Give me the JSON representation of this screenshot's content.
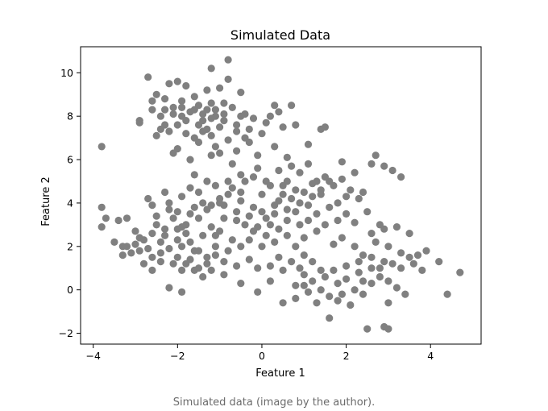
{
  "caption": "Simulated data (image by the author).",
  "chart_data": {
    "type": "scatter",
    "title": "Simulated Data",
    "xlabel": "Feature 1",
    "ylabel": "Feature 2",
    "xlim": [
      -4.3,
      5.2
    ],
    "ylim": [
      -2.5,
      11.2
    ],
    "xticks": [
      -4,
      -2,
      0,
      2,
      4
    ],
    "yticks": [
      -2,
      0,
      2,
      4,
      6,
      8,
      10
    ],
    "grid": false,
    "legend": "none",
    "marker_color": "#808080",
    "series": [
      {
        "points": [
          [
            -2.7,
            9.8
          ],
          [
            -0.8,
            10.6
          ],
          [
            -1.2,
            10.2
          ],
          [
            -2.2,
            9.5
          ],
          [
            -2.0,
            9.6
          ],
          [
            -1.8,
            9.4
          ],
          [
            -1.0,
            9.3
          ],
          [
            -0.5,
            9.1
          ],
          [
            -2.5,
            9.0
          ],
          [
            -1.3,
            9.2
          ],
          [
            -2.3,
            8.8
          ],
          [
            -1.6,
            8.9
          ],
          [
            -0.9,
            8.6
          ],
          [
            -2.6,
            8.7
          ],
          [
            -1.9,
            8.4
          ],
          [
            -1.1,
            8.3
          ],
          [
            -0.7,
            8.4
          ],
          [
            -1.5,
            8.5
          ],
          [
            -2.1,
            8.1
          ],
          [
            -2.4,
            8.0
          ],
          [
            -1.7,
            8.2
          ],
          [
            -1.2,
            7.9
          ],
          [
            -0.4,
            8.1
          ],
          [
            0.2,
            8.0
          ],
          [
            0.4,
            8.2
          ],
          [
            0.1,
            7.7
          ],
          [
            -2.9,
            7.8
          ],
          [
            -2.0,
            7.6
          ],
          [
            -1.4,
            7.8
          ],
          [
            -1.0,
            7.5
          ],
          [
            -0.6,
            7.6
          ],
          [
            -2.2,
            7.3
          ],
          [
            -1.8,
            7.2
          ],
          [
            -1.3,
            7.4
          ],
          [
            -0.3,
            7.4
          ],
          [
            0.0,
            7.2
          ],
          [
            -2.5,
            7.1
          ],
          [
            -1.6,
            7.0
          ],
          [
            -0.8,
            6.9
          ],
          [
            -0.3,
            6.8
          ],
          [
            -2.0,
            6.5
          ],
          [
            -1.5,
            6.8
          ],
          [
            -1.1,
            6.6
          ],
          [
            -0.6,
            6.4
          ],
          [
            -1.7,
            6.0
          ],
          [
            -1.2,
            6.2
          ],
          [
            -0.1,
            6.2
          ],
          [
            -0.7,
            5.8
          ],
          [
            -3.8,
            6.6
          ],
          [
            -2.9,
            7.7
          ],
          [
            -2.3,
            8.3
          ],
          [
            -1.9,
            8.0
          ],
          [
            -1.2,
            8.6
          ],
          [
            0.5,
            7.5
          ],
          [
            0.8,
            7.6
          ],
          [
            1.4,
            7.4
          ],
          [
            -0.9,
            7.8
          ],
          [
            -2.6,
            8.3
          ],
          [
            -1.5,
            7.6
          ],
          [
            -1.0,
            6.3
          ],
          [
            -2.1,
            6.3
          ],
          [
            -0.4,
            7.0
          ],
          [
            0.7,
            8.5
          ],
          [
            0.3,
            8.5
          ],
          [
            -0.5,
            8.0
          ],
          [
            -2.4,
            7.4
          ],
          [
            -0.2,
            7.9
          ],
          [
            -1.2,
            7.1
          ],
          [
            -1.4,
            8.1
          ],
          [
            -0.8,
            9.7
          ],
          [
            -3.8,
            3.8
          ],
          [
            -3.8,
            2.9
          ],
          [
            -3.7,
            3.3
          ],
          [
            -3.4,
            3.2
          ],
          [
            -3.2,
            3.3
          ],
          [
            -3.5,
            2.2
          ],
          [
            -3.3,
            2.0
          ],
          [
            -3.0,
            2.1
          ],
          [
            -2.8,
            2.3
          ],
          [
            -2.6,
            2.6
          ],
          [
            -3.1,
            1.7
          ],
          [
            -2.9,
            1.8
          ],
          [
            -2.6,
            1.5
          ],
          [
            -2.4,
            1.7
          ],
          [
            -3.3,
            1.6
          ],
          [
            -2.8,
            1.2
          ],
          [
            -2.6,
            0.9
          ],
          [
            -2.1,
            1.2
          ],
          [
            -1.7,
            1.4
          ],
          [
            -1.5,
            1.0
          ],
          [
            -1.3,
            1.2
          ],
          [
            -1.1,
            1.6
          ],
          [
            -0.9,
            1.3
          ],
          [
            -1.6,
            1.8
          ],
          [
            -1.9,
            2.0
          ],
          [
            -2.0,
            2.3
          ],
          [
            -1.8,
            2.6
          ],
          [
            -1.4,
            2.5
          ],
          [
            -1.0,
            2.7
          ],
          [
            -0.7,
            2.3
          ],
          [
            -2.3,
            2.8
          ],
          [
            -2.1,
            3.3
          ],
          [
            -1.7,
            3.5
          ],
          [
            -1.3,
            3.7
          ],
          [
            -0.9,
            3.9
          ],
          [
            -0.6,
            3.6
          ],
          [
            -2.6,
            3.9
          ],
          [
            -2.2,
            4.0
          ],
          [
            -1.9,
            4.3
          ],
          [
            -1.5,
            4.5
          ],
          [
            -1.1,
            4.8
          ],
          [
            -0.8,
            4.4
          ],
          [
            -2.7,
            4.2
          ],
          [
            -2.3,
            4.5
          ],
          [
            -1.6,
            5.3
          ],
          [
            -1.3,
            5.0
          ],
          [
            -0.5,
            4.1
          ],
          [
            -0.3,
            3.4
          ],
          [
            -0.1,
            2.9
          ],
          [
            0.1,
            3.3
          ],
          [
            0.3,
            3.9
          ],
          [
            0.5,
            4.4
          ],
          [
            0.2,
            4.8
          ],
          [
            -0.2,
            5.2
          ],
          [
            0.4,
            5.5
          ],
          [
            0.6,
            5.0
          ],
          [
            0.8,
            4.6
          ],
          [
            0.7,
            4.2
          ],
          [
            1.0,
            4.5
          ],
          [
            1.2,
            4.9
          ],
          [
            0.9,
            5.4
          ],
          [
            1.1,
            5.8
          ],
          [
            1.5,
            5.2
          ],
          [
            1.7,
            4.8
          ],
          [
            1.9,
            5.1
          ],
          [
            2.1,
            4.6
          ],
          [
            2.3,
            4.2
          ],
          [
            1.8,
            4.0
          ],
          [
            1.4,
            4.4
          ],
          [
            1.6,
            3.8
          ],
          [
            1.3,
            3.5
          ],
          [
            1.1,
            3.2
          ],
          [
            0.9,
            3.0
          ],
          [
            0.6,
            3.2
          ],
          [
            0.4,
            2.8
          ],
          [
            0.1,
            2.5
          ],
          [
            -0.2,
            2.7
          ],
          [
            0.3,
            2.2
          ],
          [
            0.6,
            2.5
          ],
          [
            0.8,
            2.0
          ],
          [
            1.0,
            2.4
          ],
          [
            1.3,
            2.7
          ],
          [
            1.5,
            3.0
          ],
          [
            1.8,
            3.2
          ],
          [
            2.0,
            3.5
          ],
          [
            2.2,
            3.1
          ],
          [
            2.5,
            3.6
          ],
          [
            2.8,
            3.0
          ],
          [
            2.6,
            2.6
          ],
          [
            2.9,
            2.8
          ],
          [
            3.2,
            2.9
          ],
          [
            3.5,
            2.6
          ],
          [
            2.7,
            2.2
          ],
          [
            3.0,
            2.0
          ],
          [
            3.3,
            1.7
          ],
          [
            3.7,
            1.6
          ],
          [
            3.9,
            1.8
          ],
          [
            4.2,
            1.3
          ],
          [
            3.6,
            1.2
          ],
          [
            3.3,
            1.0
          ],
          [
            2.9,
            1.3
          ],
          [
            2.6,
            1.0
          ],
          [
            2.3,
            0.8
          ],
          [
            2.0,
            1.1
          ],
          [
            1.7,
            0.9
          ],
          [
            1.5,
            0.6
          ],
          [
            1.2,
            0.4
          ],
          [
            1.0,
            0.7
          ],
          [
            0.8,
            0.2
          ],
          [
            1.1,
            -0.1
          ],
          [
            1.4,
            0.0
          ],
          [
            1.6,
            -0.3
          ],
          [
            1.8,
            -0.5
          ],
          [
            2.1,
            -0.7
          ],
          [
            2.4,
            -0.2
          ],
          [
            2.6,
            0.3
          ],
          [
            2.8,
            0.6
          ],
          [
            3.0,
            0.4
          ],
          [
            3.2,
            0.1
          ],
          [
            3.4,
            -0.2
          ],
          [
            2.5,
            -1.8
          ],
          [
            2.9,
            -1.7
          ],
          [
            3.0,
            -1.8
          ],
          [
            1.6,
            -1.3
          ],
          [
            0.8,
            -0.4
          ],
          [
            0.5,
            -0.6
          ],
          [
            4.7,
            0.8
          ],
          [
            4.4,
            -0.2
          ],
          [
            3.8,
            0.9
          ],
          [
            3.5,
            1.5
          ],
          [
            2.7,
            6.2
          ],
          [
            2.9,
            5.7
          ],
          [
            3.1,
            5.5
          ],
          [
            3.3,
            5.2
          ],
          [
            2.6,
            5.8
          ],
          [
            2.2,
            5.4
          ],
          [
            1.9,
            5.9
          ],
          [
            1.5,
            7.5
          ],
          [
            1.1,
            6.7
          ],
          [
            0.6,
            6.1
          ],
          [
            0.3,
            6.6
          ],
          [
            -0.1,
            5.6
          ],
          [
            -0.4,
            5.0
          ],
          [
            -0.7,
            4.7
          ],
          [
            -1.0,
            4.2
          ],
          [
            -1.2,
            3.9
          ],
          [
            -1.5,
            3.3
          ],
          [
            -1.8,
            3.0
          ],
          [
            -2.0,
            2.8
          ],
          [
            -2.4,
            2.2
          ],
          [
            -2.2,
            1.9
          ],
          [
            -2.0,
            1.5
          ],
          [
            -1.8,
            1.2
          ],
          [
            -1.6,
            0.9
          ],
          [
            -1.4,
            0.6
          ],
          [
            -1.2,
            0.9
          ],
          [
            -0.9,
            0.7
          ],
          [
            -0.6,
            1.1
          ],
          [
            -0.3,
            1.4
          ],
          [
            -0.1,
            1.0
          ],
          [
            0.2,
            1.1
          ],
          [
            0.4,
            1.5
          ],
          [
            0.7,
            1.3
          ],
          [
            0.5,
            0.9
          ],
          [
            0.2,
            0.4
          ],
          [
            -0.1,
            -0.1
          ],
          [
            -0.5,
            0.3
          ],
          [
            -1.9,
            0.9
          ],
          [
            -2.2,
            0.1
          ],
          [
            -1.9,
            -0.1
          ],
          [
            -1.1,
            2.0
          ],
          [
            -0.8,
            1.8
          ],
          [
            -0.5,
            2.0
          ],
          [
            -0.3,
            2.3
          ],
          [
            0.0,
            2.0
          ],
          [
            -2.5,
            3.0
          ],
          [
            -3.0,
            2.7
          ],
          [
            -2.2,
            3.7
          ],
          [
            -1.2,
            2.9
          ],
          [
            -0.4,
            3.0
          ],
          [
            0.0,
            3.6
          ],
          [
            0.3,
            3.5
          ],
          [
            0.6,
            3.7
          ],
          [
            0.9,
            4.0
          ],
          [
            1.2,
            4.3
          ],
          [
            0.5,
            4.8
          ],
          [
            0.0,
            4.4
          ],
          [
            -0.5,
            4.5
          ],
          [
            -0.8,
            5.0
          ],
          [
            -1.4,
            4.0
          ],
          [
            1.7,
            2.1
          ],
          [
            1.9,
            2.4
          ],
          [
            2.2,
            2.0
          ],
          [
            2.4,
            1.6
          ],
          [
            2.0,
            0.5
          ],
          [
            1.8,
            0.3
          ],
          [
            1.4,
            0.9
          ],
          [
            1.2,
            1.3
          ],
          [
            1.0,
            1.6
          ],
          [
            0.9,
            1.0
          ],
          [
            2.3,
            1.3
          ],
          [
            2.6,
            1.5
          ],
          [
            2.8,
            1.0
          ],
          [
            3.1,
            1.2
          ],
          [
            2.4,
            0.4
          ],
          [
            2.2,
            0.0
          ],
          [
            1.9,
            -0.2
          ],
          [
            1.3,
            -0.6
          ],
          [
            1.0,
            0.2
          ],
          [
            3.0,
            -0.6
          ],
          [
            -3.2,
            2.0
          ],
          [
            -2.9,
            2.4
          ],
          [
            -2.7,
            1.9
          ],
          [
            -2.4,
            1.3
          ],
          [
            -2.3,
            2.5
          ],
          [
            -1.9,
            2.9
          ],
          [
            -1.7,
            2.2
          ],
          [
            -1.5,
            1.8
          ],
          [
            -1.3,
            1.5
          ],
          [
            -1.1,
            2.5
          ],
          [
            0.1,
            5.0
          ],
          [
            0.4,
            4.1
          ],
          [
            0.8,
            3.6
          ],
          [
            1.1,
            3.9
          ],
          [
            1.4,
            4.6
          ],
          [
            1.6,
            5.0
          ],
          [
            2.0,
            4.3
          ],
          [
            2.4,
            4.5
          ],
          [
            0.2,
            3.0
          ],
          [
            -0.2,
            3.8
          ],
          [
            -0.6,
            3.2
          ],
          [
            -0.9,
            3.3
          ],
          [
            -1.6,
            3.8
          ],
          [
            -2.0,
            3.6
          ],
          [
            -2.5,
            3.4
          ],
          [
            -1.7,
            4.7
          ],
          [
            -1.0,
            4.0
          ],
          [
            -0.5,
            5.3
          ],
          [
            0.7,
            5.7
          ],
          [
            1.3,
            5.0
          ],
          [
            -1.1,
            8.0
          ],
          [
            -1.4,
            7.3
          ],
          [
            -1.9,
            8.7
          ],
          [
            -2.1,
            8.4
          ],
          [
            -0.9,
            8.1
          ],
          [
            -1.6,
            8.3
          ],
          [
            -0.6,
            7.3
          ],
          [
            -2.3,
            7.6
          ],
          [
            -1.3,
            8.3
          ],
          [
            -1.8,
            7.8
          ]
        ]
      }
    ]
  }
}
